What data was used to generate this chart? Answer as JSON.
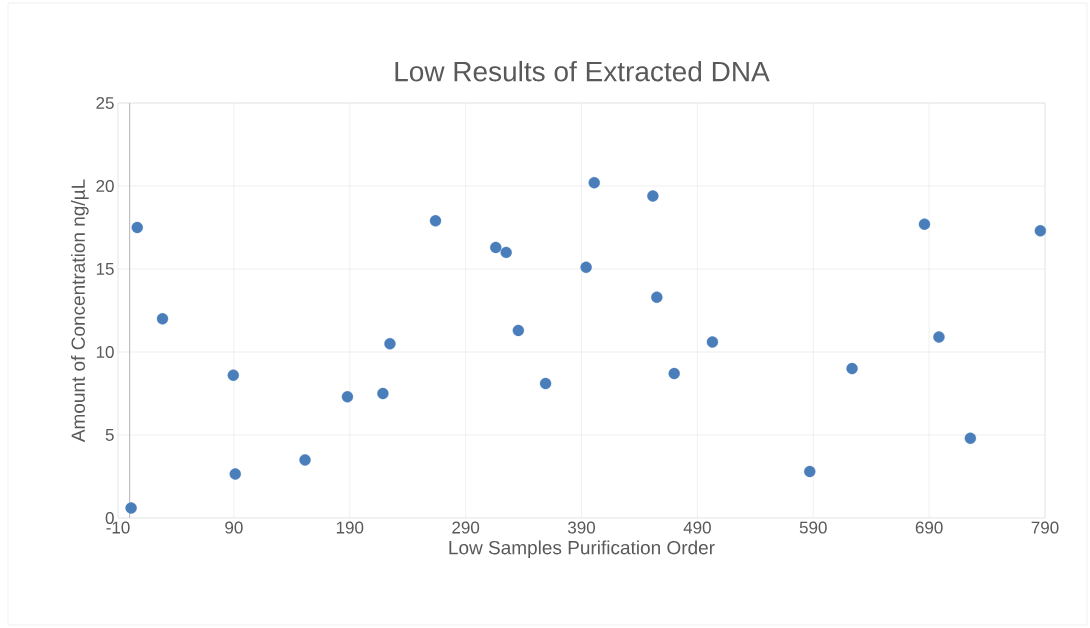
{
  "chart_data": {
    "type": "scatter",
    "title": "Low Results of Extracted DNA",
    "xlabel": "Low Samples Purification Order",
    "ylabel": "Amount of Concentration ng/µL",
    "x": [
      1.3,
      6.6,
      28.4,
      89.5,
      91.2,
      151.4,
      188,
      218.6,
      224.7,
      264,
      316,
      325,
      335.5,
      359,
      394,
      401,
      451.6,
      455,
      470,
      503,
      587,
      623.5,
      686,
      698.5,
      725.6,
      786
    ],
    "series": [
      {
        "color": "#4a7ebb",
        "values": [
          0.6,
          17.5,
          12.0,
          8.6,
          2.65,
          3.5,
          7.3,
          7.5,
          10.5,
          17.9,
          16.3,
          16.0,
          11.3,
          8.1,
          15.1,
          20.2,
          19.4,
          13.3,
          8.7,
          10.6,
          2.8,
          9.0,
          17.7,
          10.9,
          4.8,
          17.3
        ]
      }
    ],
    "xlim": [
      -10,
      790
    ],
    "xticks": [
      -10,
      90,
      190,
      290,
      390,
      490,
      590,
      690,
      790
    ],
    "ylim": [
      0,
      25
    ],
    "yticks": [
      0,
      5,
      10,
      15,
      20,
      25
    ],
    "ref_lines": [
      {
        "axis": "x",
        "value": 0,
        "color": "#bfbfbf"
      }
    ],
    "grid": true,
    "marker": "circle"
  }
}
